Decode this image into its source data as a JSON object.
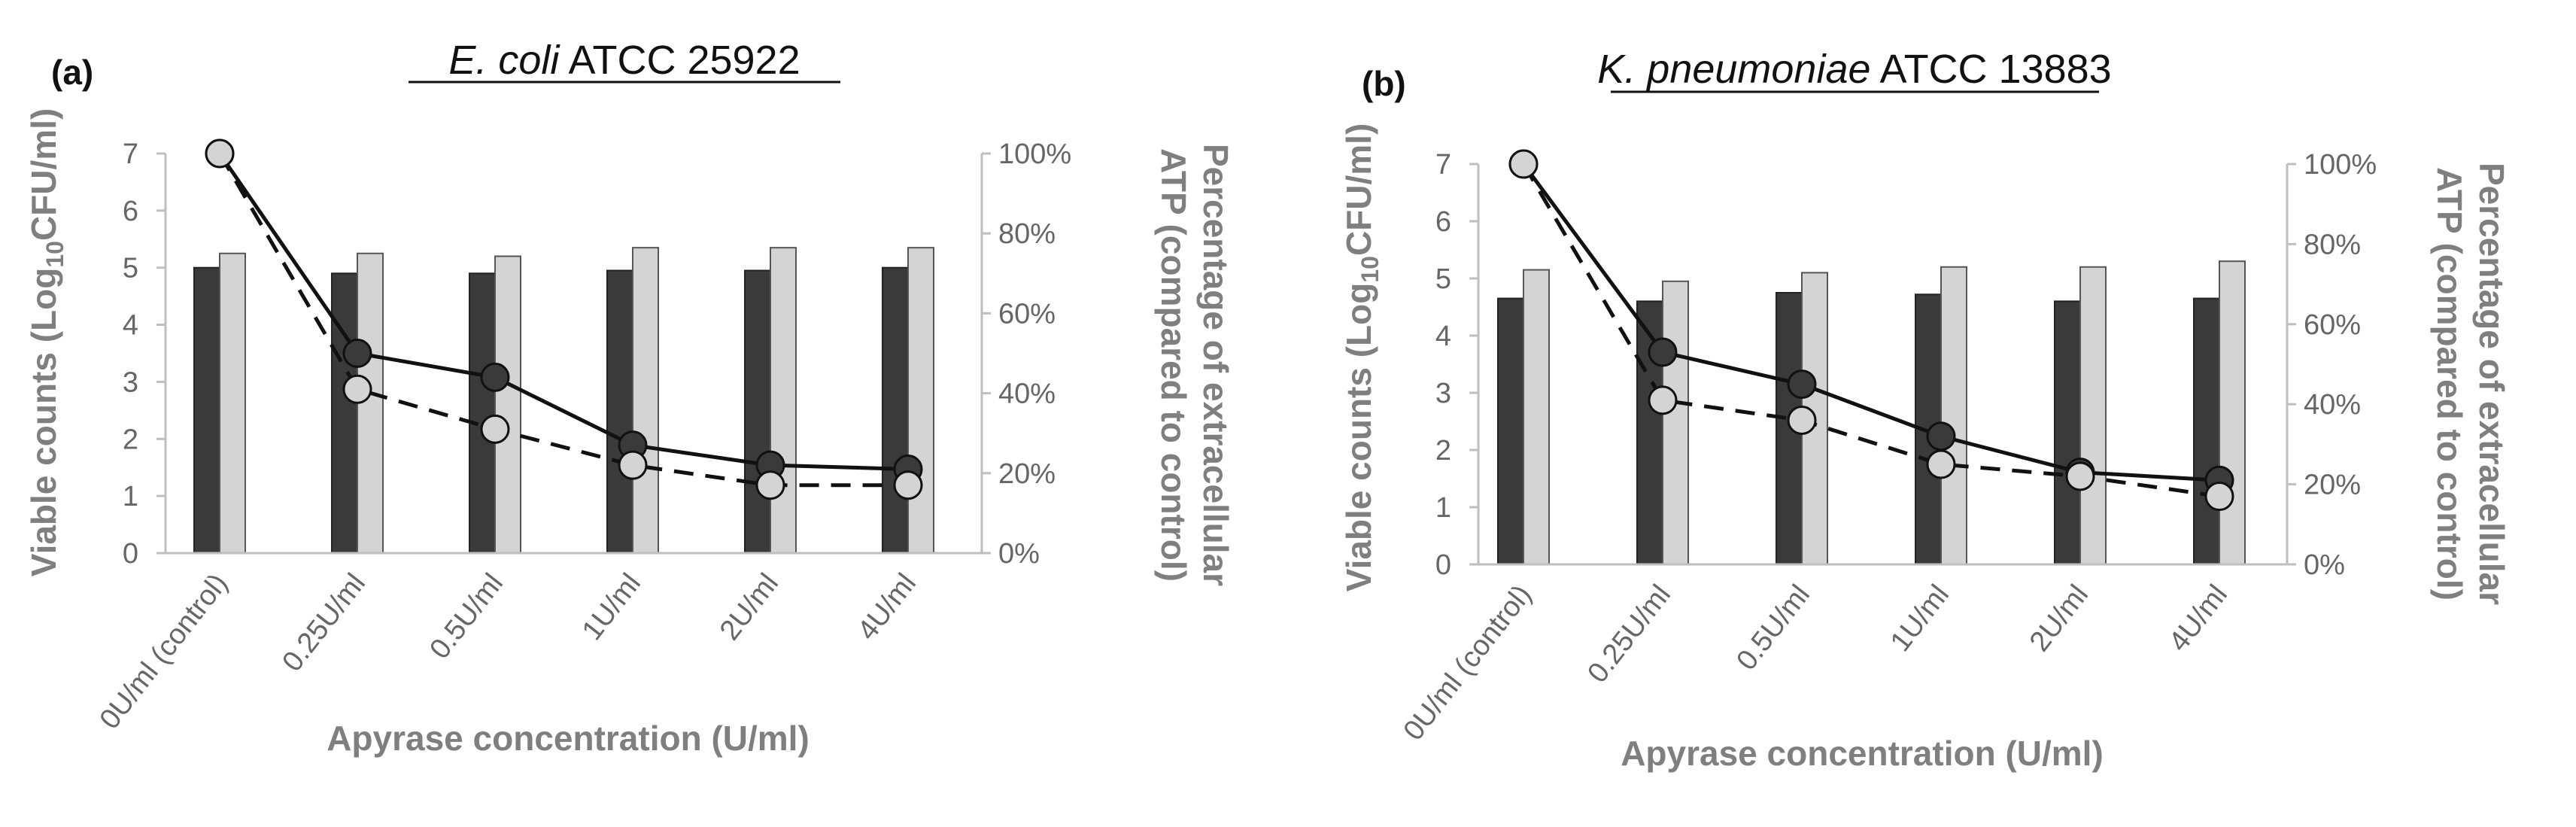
{
  "chart_data": [
    {
      "type": "bar",
      "panel_label": "(a)",
      "title": {
        "italic": "E. coli",
        "rest": " ATCC 25922"
      },
      "categories": [
        "0U/ml (control)",
        "0.25U/ml",
        "0.5U/ml",
        "1U/ml",
        "2U/ml",
        "4U/ml"
      ],
      "series": [
        {
          "name": "Viable counts (dark bars)",
          "type": "bar",
          "axis": "left",
          "color": "#3a3a3a",
          "values": [
            5.0,
            4.9,
            4.9,
            4.95,
            4.95,
            5.0
          ]
        },
        {
          "name": "Viable counts (light bars)",
          "type": "bar",
          "axis": "left",
          "color": "#d4d4d4",
          "values": [
            5.25,
            5.25,
            5.2,
            5.35,
            5.35,
            5.35
          ]
        },
        {
          "name": "Extracellular ATP (solid line)",
          "type": "line",
          "axis": "right",
          "dash": false,
          "marker_color": "#3a3a3a",
          "values": [
            100,
            50,
            44,
            27,
            22,
            21
          ]
        },
        {
          "name": "Extracellular ATP (dashed line)",
          "type": "line",
          "axis": "right",
          "dash": true,
          "marker_color": "#d4d4d4",
          "values": [
            100,
            41,
            31,
            22,
            17,
            17
          ]
        }
      ],
      "xlabel": "Apyrase concentration (U/ml)",
      "ylabel": {
        "pre": "Viable counts (Log",
        "sub": "10",
        "post": "CFU/ml)"
      },
      "y2label": [
        "Percentage of extracellular",
        "ATP (compared to control)"
      ],
      "ylim": [
        0,
        7
      ],
      "yticks": [
        "0",
        "1",
        "2",
        "3",
        "4",
        "5",
        "6",
        "7"
      ],
      "y2lim": [
        0,
        100
      ],
      "y2ticks": [
        "0%",
        "20%",
        "40%",
        "60%",
        "80%",
        "100%"
      ],
      "grid": false
    },
    {
      "type": "bar",
      "panel_label": "(b)",
      "title": {
        "italic": "K. pneumoniae",
        "rest": " ATCC 13883"
      },
      "categories": [
        "0U/ml (control)",
        "0.25U/ml",
        "0.5U/ml",
        "1U/ml",
        "2U/ml",
        "4U/ml"
      ],
      "series": [
        {
          "name": "Viable counts (dark bars)",
          "type": "bar",
          "axis": "left",
          "color": "#3a3a3a",
          "values": [
            4.65,
            4.6,
            4.75,
            4.72,
            4.6,
            4.65
          ]
        },
        {
          "name": "Viable counts (light bars)",
          "type": "bar",
          "axis": "left",
          "color": "#d4d4d4",
          "values": [
            5.15,
            4.95,
            5.1,
            5.2,
            5.2,
            5.3
          ]
        },
        {
          "name": "Extracellular ATP (solid line)",
          "type": "line",
          "axis": "right",
          "dash": false,
          "marker_color": "#3a3a3a",
          "values": [
            100,
            53,
            45,
            32,
            23,
            21
          ]
        },
        {
          "name": "Extracellular ATP (dashed line)",
          "type": "line",
          "axis": "right",
          "dash": true,
          "marker_color": "#d4d4d4",
          "values": [
            100,
            41,
            36,
            25,
            22,
            17
          ]
        }
      ],
      "xlabel": "Apyrase concentration (U/ml)",
      "ylabel": {
        "pre": "Viable counts (Log",
        "sub": "10",
        "post": "CFU/ml)"
      },
      "y2label": [
        "Percentage of extracellular",
        "ATP (compared to control)"
      ],
      "ylim": [
        0,
        7
      ],
      "yticks": [
        "0",
        "1",
        "2",
        "3",
        "4",
        "5",
        "6",
        "7"
      ],
      "y2lim": [
        0,
        100
      ],
      "y2ticks": [
        "0%",
        "20%",
        "40%",
        "60%",
        "80%",
        "100%"
      ],
      "grid": false
    }
  ]
}
